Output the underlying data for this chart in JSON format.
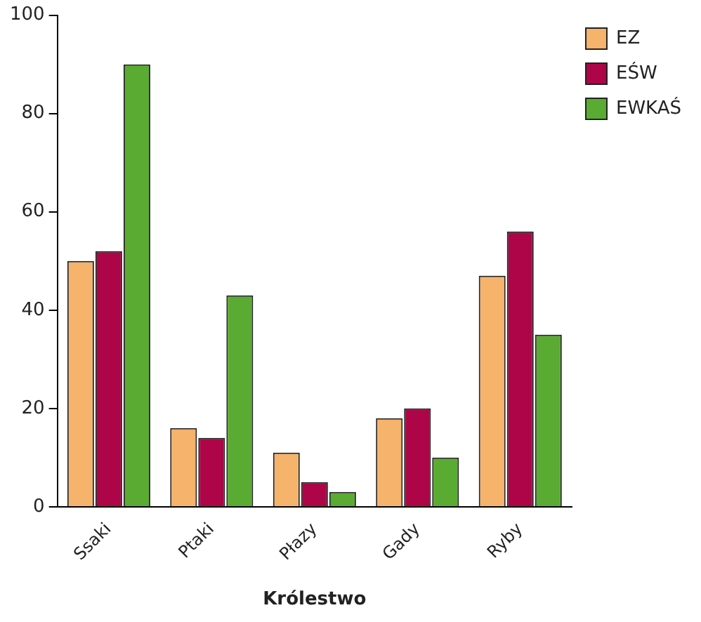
{
  "chart_data": {
    "type": "bar",
    "xlabel": "Królestwo",
    "categories": [
      "Ssaki",
      "Ptaki",
      "Płazy",
      "Gady",
      "Ryby"
    ],
    "series": [
      {
        "name": "EZ",
        "color": "#f5b36b",
        "values": [
          50,
          16,
          11,
          18,
          47
        ]
      },
      {
        "name": "EŚW",
        "color": "#ad0548",
        "values": [
          52,
          14,
          5,
          20,
          56
        ]
      },
      {
        "name": "EWKAŚ",
        "color": "#5aab31",
        "values": [
          90,
          43,
          3,
          10,
          35
        ]
      }
    ],
    "ylim": [
      0,
      100
    ],
    "yticks": [
      0,
      20,
      40,
      60,
      80,
      100
    ],
    "grid": false,
    "legend": "top right"
  }
}
